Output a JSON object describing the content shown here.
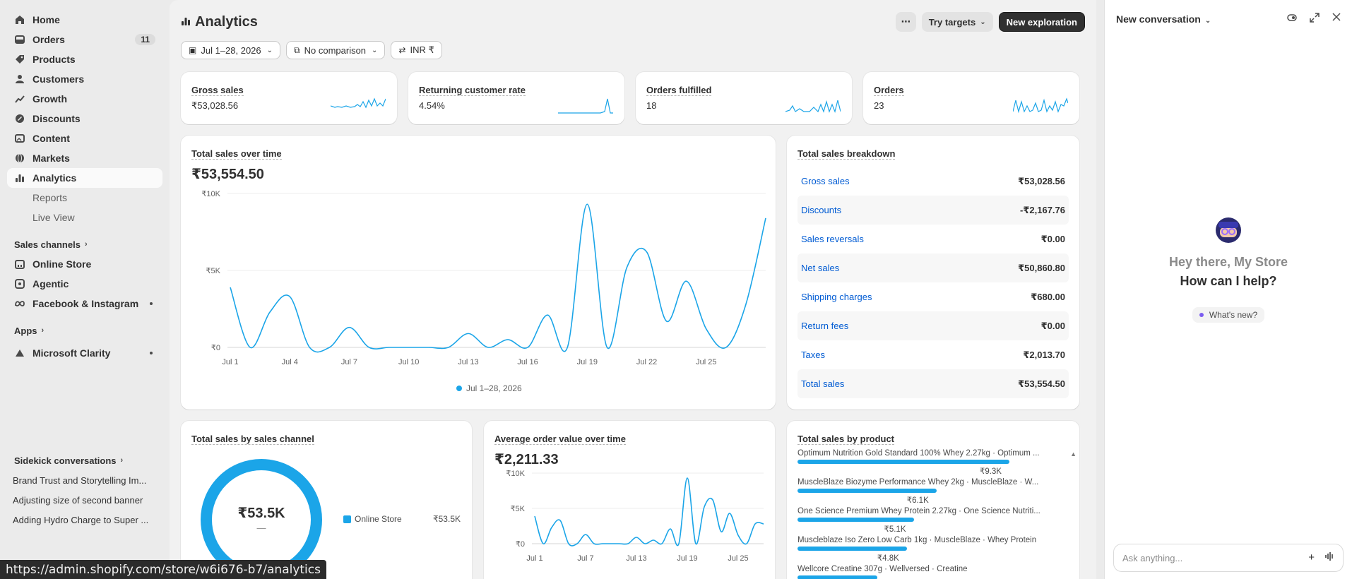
{
  "sidebar": {
    "items": [
      {
        "label": "Home",
        "icon": "home-icon"
      },
      {
        "label": "Orders",
        "icon": "orders-icon",
        "badge": "11"
      },
      {
        "label": "Products",
        "icon": "tag-icon"
      },
      {
        "label": "Customers",
        "icon": "person-icon"
      },
      {
        "label": "Growth",
        "icon": "growth-icon"
      },
      {
        "label": "Discounts",
        "icon": "discount-icon"
      },
      {
        "label": "Content",
        "icon": "content-icon"
      },
      {
        "label": "Markets",
        "icon": "globe-icon"
      },
      {
        "label": "Analytics",
        "icon": "bar-chart-icon",
        "active": true
      }
    ],
    "sub_items": [
      "Reports",
      "Live View"
    ],
    "sales_channels_label": "Sales channels",
    "channels": [
      {
        "label": "Online Store",
        "icon": "store-icon"
      },
      {
        "label": "Agentic",
        "icon": "agentic-icon"
      },
      {
        "label": "Facebook & Instagram",
        "icon": "meta-icon"
      }
    ],
    "apps_label": "Apps",
    "apps": [
      {
        "label": "Microsoft Clarity",
        "icon": "clarity-icon"
      }
    ],
    "sidekick_label": "Sidekick conversations",
    "conversations": [
      "Brand Trust and Storytelling Im...",
      "Adjusting size of second banner",
      "Adding Hydro Charge to Super ..."
    ]
  },
  "header": {
    "title": "Analytics",
    "more_label": "⋯",
    "try_targets": "Try targets",
    "new_exploration": "New exploration"
  },
  "filters": {
    "date": "Jul 1–28, 2026",
    "comparison": "No comparison",
    "currency": "INR ₹"
  },
  "kpis": [
    {
      "label": "Gross sales",
      "value": "₹53,028.56"
    },
    {
      "label": "Returning customer rate",
      "value": "4.54%"
    },
    {
      "label": "Orders fulfilled",
      "value": "18"
    },
    {
      "label": "Orders",
      "value": "23"
    }
  ],
  "sales_over_time": {
    "title": "Total sales over time",
    "value": "₹53,554.50",
    "legend": "Jul 1–28, 2026",
    "chart_data": {
      "type": "line",
      "x": [
        "Jul 1",
        "Jul 2",
        "Jul 3",
        "Jul 4",
        "Jul 5",
        "Jul 6",
        "Jul 7",
        "Jul 8",
        "Jul 9",
        "Jul 10",
        "Jul 11",
        "Jul 12",
        "Jul 13",
        "Jul 14",
        "Jul 15",
        "Jul 16",
        "Jul 17",
        "Jul 18",
        "Jul 19",
        "Jul 20",
        "Jul 21",
        "Jul 22",
        "Jul 23",
        "Jul 24",
        "Jul 25",
        "Jul 26",
        "Jul 27",
        "Jul 28"
      ],
      "x_ticks": [
        "Jul 1",
        "Jul 4",
        "Jul 7",
        "Jul 10",
        "Jul 13",
        "Jul 16",
        "Jul 19",
        "Jul 22",
        "Jul 25"
      ],
      "y_ticks": [
        "₹0",
        "₹5K",
        "₹10K"
      ],
      "ylim": [
        0,
        10000
      ],
      "series": [
        {
          "name": "Jul 1–28, 2026",
          "values": [
            3900,
            0,
            2300,
            3300,
            0,
            0,
            1300,
            0,
            0,
            0,
            0,
            0,
            900,
            0,
            500,
            0,
            2100,
            0,
            9300,
            0,
            5200,
            6200,
            1700,
            4300,
            1200,
            0,
            2800,
            8400
          ]
        }
      ]
    }
  },
  "breakdown": {
    "title": "Total sales breakdown",
    "rows": [
      {
        "k": "Gross sales",
        "v": "₹53,028.56"
      },
      {
        "k": "Discounts",
        "v": "-₹2,167.76"
      },
      {
        "k": "Sales reversals",
        "v": "₹0.00"
      },
      {
        "k": "Net sales",
        "v": "₹50,860.80"
      },
      {
        "k": "Shipping charges",
        "v": "₹680.00"
      },
      {
        "k": "Return fees",
        "v": "₹0.00"
      },
      {
        "k": "Taxes",
        "v": "₹2,013.70"
      },
      {
        "k": "Total sales",
        "v": "₹53,554.50"
      }
    ]
  },
  "by_channel": {
    "title": "Total sales by sales channel",
    "center_value": "₹53.5K",
    "center_sub": "—",
    "legend_label": "Online Store",
    "legend_value": "₹53.5K"
  },
  "aov": {
    "title": "Average order value over time",
    "value": "₹2,211.33",
    "chart_data": {
      "type": "line",
      "x_ticks": [
        "Jul 1",
        "Jul 7",
        "Jul 13",
        "Jul 19",
        "Jul 25"
      ],
      "y_ticks": [
        "₹0",
        "₹5K",
        "₹10K"
      ],
      "ylim": [
        0,
        10000
      ],
      "series": [
        {
          "name": "Jul 1–28, 2026",
          "values": [
            3900,
            0,
            2300,
            3300,
            0,
            0,
            1300,
            0,
            0,
            0,
            0,
            0,
            900,
            0,
            500,
            0,
            2100,
            0,
            9300,
            0,
            5200,
            6200,
            1700,
            4300,
            1200,
            0,
            2800,
            2800
          ]
        }
      ]
    },
    "legend": "Jul 1–28, 2026"
  },
  "by_product": {
    "title": "Total sales by product",
    "chart_data": {
      "type": "bar",
      "categories": [
        "Optimum Nutrition Gold Standard 100% Whey 2.27kg · Optimum ...",
        "MuscleBlaze Biozyme Performance Whey 2kg · MuscleBlaze · W...",
        "One Science Premium Whey Protein 2.27kg · One Science Nutriti...",
        "Muscleblaze Iso Zero Low Carb 1kg · MuscleBlaze · Whey Protein",
        "Wellcore Creatine 307g · Wellversed · Creatine"
      ],
      "values": [
        9300,
        6100,
        5100,
        4800,
        3500
      ],
      "labels": [
        "₹9.3K",
        "₹6.1K",
        "₹5.1K",
        "₹4.8K",
        ""
      ]
    }
  },
  "panel": {
    "title": "New conversation",
    "greet1": "Hey there, My Store",
    "greet2": "How can I help?",
    "whats_new": "What's new?",
    "ask_placeholder": "Ask anything..."
  },
  "status_url": "https://admin.shopify.com/store/w6i676-b7/analytics",
  "colors": {
    "accent": "#1ba5e8",
    "primary_button": "#303030",
    "link": "#005bd3"
  }
}
